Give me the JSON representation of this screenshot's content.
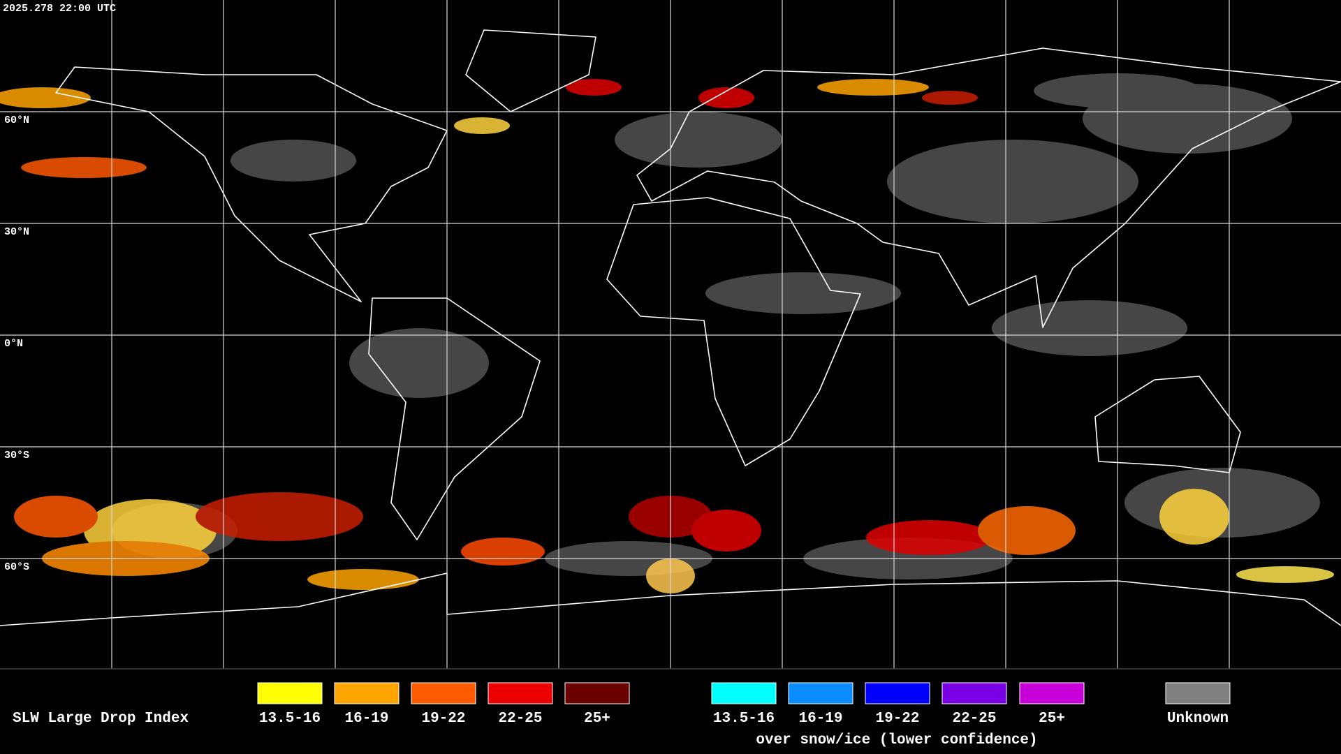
{
  "header": {
    "timestamp": "2025.278 22:00 UTC"
  },
  "map": {
    "latitude_labels": [
      "60°N",
      "30°N",
      "0°N",
      "30°S",
      "60°S"
    ]
  },
  "legend": {
    "title": "SLW Large Drop Index",
    "items": [
      {
        "label": "13.5-16",
        "color": "#ffff00"
      },
      {
        "label": "16-19",
        "color": "#ffa500"
      },
      {
        "label": "19-22",
        "color": "#ff5a00"
      },
      {
        "label": "22-25",
        "color": "#ee0000"
      },
      {
        "label": "25+",
        "color": "#6a0000"
      }
    ],
    "snow_ice_items": [
      {
        "label": "13.5-16",
        "color": "#00ffff"
      },
      {
        "label": "16-19",
        "color": "#0a8cff"
      },
      {
        "label": "19-22",
        "color": "#0000ff"
      },
      {
        "label": "22-25",
        "color": "#7a00e6"
      },
      {
        "label": "25+",
        "color": "#c800d8"
      }
    ],
    "snow_ice_caption": "over snow/ice (lower confidence)",
    "unknown": {
      "label": "Unknown",
      "color": "#808080"
    }
  }
}
